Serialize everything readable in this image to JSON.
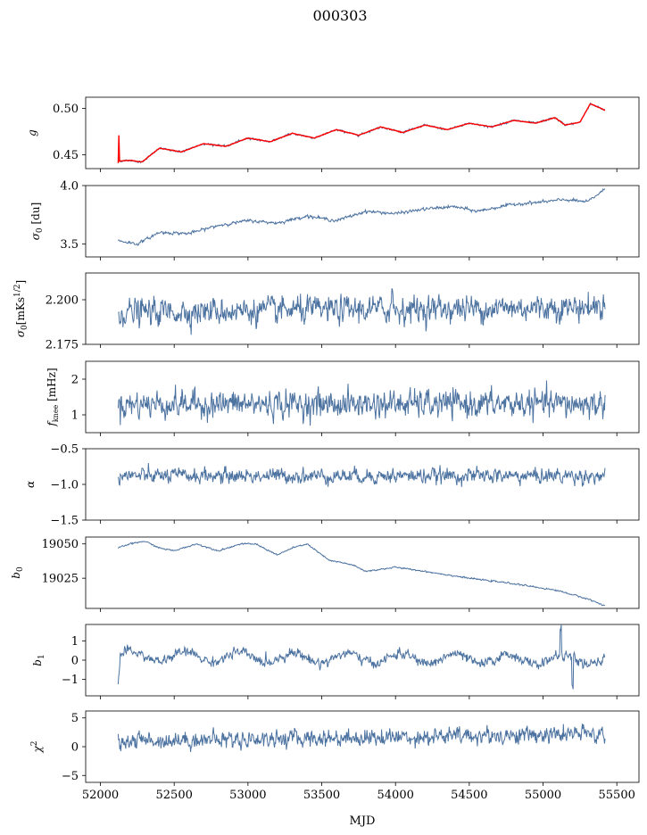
{
  "figure": {
    "title": "000303"
  },
  "chart_data": {
    "type": "line",
    "xlabel": "MJD",
    "xlim": [
      51900,
      55650
    ],
    "xticks": [
      52000,
      52500,
      53000,
      53500,
      54000,
      54500,
      55000,
      55500
    ],
    "x_data_range": [
      52120,
      55420
    ],
    "series_color": "#4c72a0",
    "overlay_color": "#ff0000",
    "panels": [
      {
        "ylabel": "g",
        "ylim": [
          0.435,
          0.512
        ],
        "ytick_values": [
          0.45,
          0.5
        ],
        "ytick_labels": [
          "0.45",
          "0.50"
        ],
        "description": "Slowly rising oscillating trend with red model overlay",
        "knots": [
          [
            52120,
            0.443
          ],
          [
            52200,
            0.444
          ],
          [
            52280,
            0.442
          ],
          [
            52400,
            0.457
          ],
          [
            52550,
            0.453
          ],
          [
            52700,
            0.462
          ],
          [
            52850,
            0.459
          ],
          [
            53000,
            0.468
          ],
          [
            53150,
            0.464
          ],
          [
            53300,
            0.473
          ],
          [
            53450,
            0.468
          ],
          [
            53600,
            0.477
          ],
          [
            53750,
            0.471
          ],
          [
            53900,
            0.48
          ],
          [
            54050,
            0.474
          ],
          [
            54200,
            0.482
          ],
          [
            54350,
            0.477
          ],
          [
            54500,
            0.484
          ],
          [
            54650,
            0.48
          ],
          [
            54800,
            0.487
          ],
          [
            54950,
            0.484
          ],
          [
            55080,
            0.49
          ],
          [
            55150,
            0.482
          ],
          [
            55250,
            0.485
          ],
          [
            55320,
            0.505
          ],
          [
            55420,
            0.498
          ]
        ],
        "noise": 0.0005,
        "osc_amp": 0,
        "osc_period": 1
      },
      {
        "ylabel": "σ0 [du]",
        "ylim": [
          3.39,
          4.0
        ],
        "ytick_values": [
          3.5,
          4.0
        ],
        "ytick_labels": [
          "3.5",
          "4.0"
        ],
        "description": "Slowly rising trend",
        "knots": [
          [
            52120,
            3.53
          ],
          [
            52250,
            3.5
          ],
          [
            52400,
            3.6
          ],
          [
            52600,
            3.59
          ],
          [
            52800,
            3.66
          ],
          [
            53000,
            3.7
          ],
          [
            53200,
            3.68
          ],
          [
            53400,
            3.74
          ],
          [
            53600,
            3.7
          ],
          [
            53800,
            3.78
          ],
          [
            54000,
            3.76
          ],
          [
            54200,
            3.8
          ],
          [
            54400,
            3.82
          ],
          [
            54550,
            3.78
          ],
          [
            54800,
            3.84
          ],
          [
            55000,
            3.86
          ],
          [
            55150,
            3.88
          ],
          [
            55300,
            3.86
          ],
          [
            55420,
            3.97
          ]
        ],
        "noise": 0.006,
        "osc_amp": 0,
        "osc_period": 1
      },
      {
        "ylabel": "σ0[mKs1/2]",
        "ylim": [
          2.175,
          2.215
        ],
        "ytick_values": [
          2.175,
          2.2
        ],
        "ytick_labels": [
          "2.175",
          "2.200"
        ],
        "description": "Noisy around 2.196",
        "knots": [
          [
            52120,
            2.193
          ],
          [
            55420,
            2.196
          ]
        ],
        "noise": 0.0035,
        "osc_amp": 0,
        "osc_period": 1
      },
      {
        "ylabel": "fknee [mHz]",
        "ylim": [
          0.5,
          2.5
        ],
        "ytick_values": [
          1,
          2
        ],
        "ytick_labels": [
          "1",
          "2"
        ],
        "description": "Noisy around 1.3",
        "knots": [
          [
            52120,
            1.3
          ],
          [
            55420,
            1.3
          ]
        ],
        "noise": 0.18,
        "osc_amp": 0,
        "osc_period": 1
      },
      {
        "ylabel": "α",
        "ylim": [
          -1.5,
          -0.5
        ],
        "ytick_values": [
          -1.5,
          -1.0,
          -0.5
        ],
        "ytick_labels": [
          "−1.5",
          "−1.0",
          "−0.5"
        ],
        "description": "Noisy around -0.88",
        "knots": [
          [
            52120,
            -0.88
          ],
          [
            55420,
            -0.88
          ]
        ],
        "noise": 0.05,
        "osc_amp": 0,
        "osc_period": 1
      },
      {
        "ylabel": "b0",
        "ylim": [
          19003,
          19055
        ],
        "ytick_values": [
          19025,
          19050
        ],
        "ytick_labels": [
          "19025",
          "19050"
        ],
        "description": "Oscillating then decreasing",
        "knots": [
          [
            52120,
            19047
          ],
          [
            52200,
            19050
          ],
          [
            52300,
            19052
          ],
          [
            52400,
            19047
          ],
          [
            52500,
            19045
          ],
          [
            52650,
            19050
          ],
          [
            52800,
            19045
          ],
          [
            52950,
            19050
          ],
          [
            53050,
            19050
          ],
          [
            53200,
            19042
          ],
          [
            53300,
            19047
          ],
          [
            53400,
            19050
          ],
          [
            53550,
            19038
          ],
          [
            53700,
            19035
          ],
          [
            53800,
            19030
          ],
          [
            54000,
            19033
          ],
          [
            54200,
            19030
          ],
          [
            54500,
            19025
          ],
          [
            54800,
            19021
          ],
          [
            55100,
            19016
          ],
          [
            55300,
            19010
          ],
          [
            55420,
            19005
          ]
        ],
        "noise": 0.25,
        "osc_amp": 0,
        "osc_period": 1
      },
      {
        "ylabel": "b1",
        "ylim": [
          -1.85,
          1.85
        ],
        "ytick_values": [
          -1,
          0,
          1
        ],
        "ytick_labels": [
          "−1",
          "0",
          "1"
        ],
        "description": "Noisy around zero with annual wiggle and spikes",
        "knots": [
          [
            52120,
            -1.3
          ],
          [
            52135,
            0.2
          ],
          [
            55420,
            0.0
          ]
        ],
        "noise": 0.12,
        "osc_amp": 0.25,
        "osc_period": 365
      },
      {
        "ylabel": "χ2",
        "ylim": [
          -6.2,
          6.2
        ],
        "ytick_values": [
          -5,
          0,
          5
        ],
        "ytick_labels": [
          "−5",
          "0",
          "5"
        ],
        "description": "Noisy around 1.5",
        "knots": [
          [
            52120,
            1.0
          ],
          [
            55420,
            2.2
          ]
        ],
        "noise": 0.7,
        "osc_amp": 0,
        "osc_period": 1
      }
    ]
  }
}
